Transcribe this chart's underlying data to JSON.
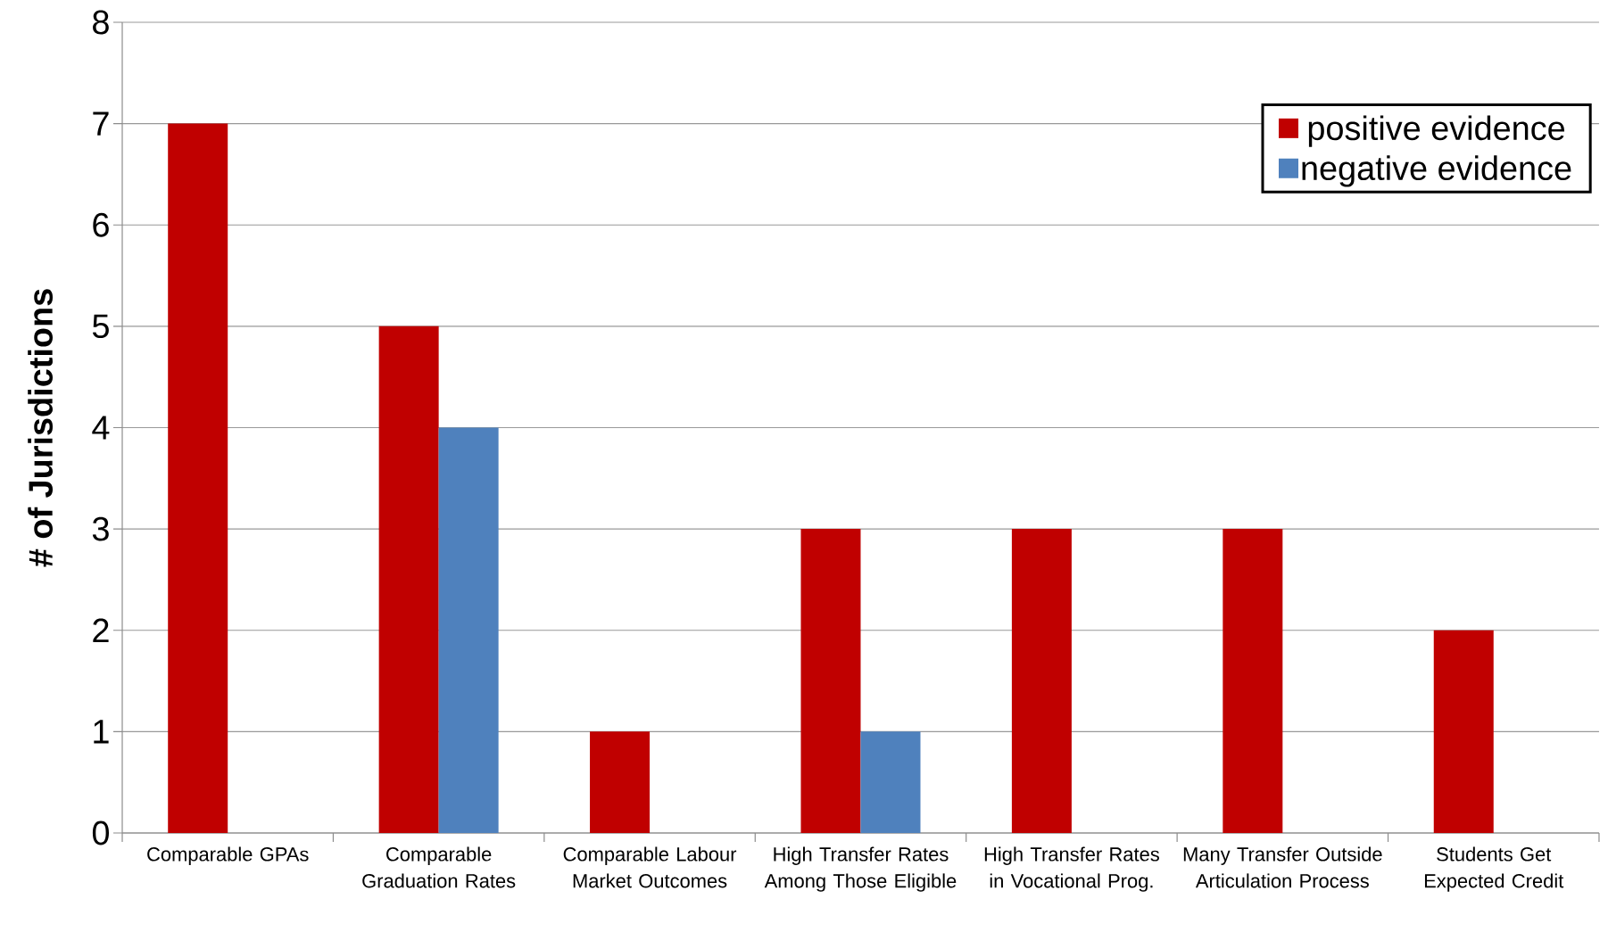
{
  "chart_data": {
    "type": "bar",
    "ylabel": "# of Jurisdictions",
    "categories": [
      "Comparable GPAs",
      "Comparable Graduation Rates",
      "Comparable Labour Market Outcomes",
      "High Transfer Rates Among Those Eligible",
      "High Transfer Rates in Vocational Prog.",
      "Many Transfer Outside Articulation Process",
      "Students Get Expected Credit"
    ],
    "series": [
      {
        "name": "positive evidence",
        "color": "#c00000",
        "values": [
          7,
          5,
          1,
          3,
          3,
          3,
          2
        ]
      },
      {
        "name": "negative evidence",
        "color": "#4f81bd",
        "values": [
          null,
          4,
          null,
          1,
          null,
          null,
          null
        ]
      }
    ],
    "ylim": [
      0,
      8
    ],
    "yticks": [
      0,
      1,
      2,
      3,
      4,
      5,
      6,
      7,
      8
    ],
    "grid": "y",
    "legend": "top right"
  }
}
